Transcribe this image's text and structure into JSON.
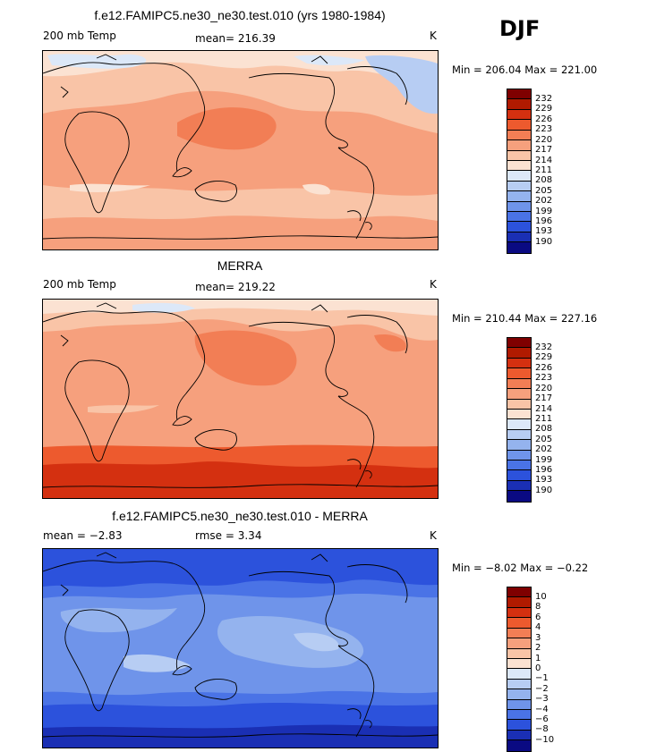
{
  "season": "DJF",
  "panels": [
    {
      "title": "f.e12.FAMIPC5.ne30_ne30.test.010 (yrs 1980-1984)",
      "left_label": "200 mb Temp",
      "center_label": "mean= 216.39",
      "units": "K",
      "minmax": "Min = 206.04 Max = 221.00",
      "colorbar_labels": [
        "232",
        "229",
        "226",
        "223",
        "220",
        "217",
        "214",
        "211",
        "208",
        "205",
        "202",
        "199",
        "196",
        "193",
        "190"
      ]
    },
    {
      "title": "MERRA",
      "left_label": "200 mb Temp",
      "center_label": "mean= 219.22",
      "units": "K",
      "minmax": "Min = 210.44 Max = 227.16",
      "colorbar_labels": [
        "232",
        "229",
        "226",
        "223",
        "220",
        "217",
        "214",
        "211",
        "208",
        "205",
        "202",
        "199",
        "196",
        "193",
        "190"
      ]
    },
    {
      "title": "f.e12.FAMIPC5.ne30_ne30.test.010 - MERRA",
      "left_label": "mean =   −2.83",
      "center_label": "rmse =    3.34",
      "units": "K",
      "minmax": "Min =  −8.02 Max =  −0.22",
      "colorbar_labels": [
        "10",
        "8",
        "6",
        "4",
        "3",
        "2",
        "1",
        "0",
        "−1",
        "−2",
        "−3",
        "−4",
        "−6",
        "−8",
        "−10"
      ]
    }
  ],
  "palette": [
    "#7f0000",
    "#b01a00",
    "#d43010",
    "#ed5a2e",
    "#f27e55",
    "#f6a07d",
    "#f9c4a7",
    "#fbe2d2",
    "#dce8f8",
    "#b7cdf3",
    "#94b3ee",
    "#6f94ea",
    "#4a73e6",
    "#2c52dc",
    "#1a2fb4",
    "#0a0a82"
  ]
}
